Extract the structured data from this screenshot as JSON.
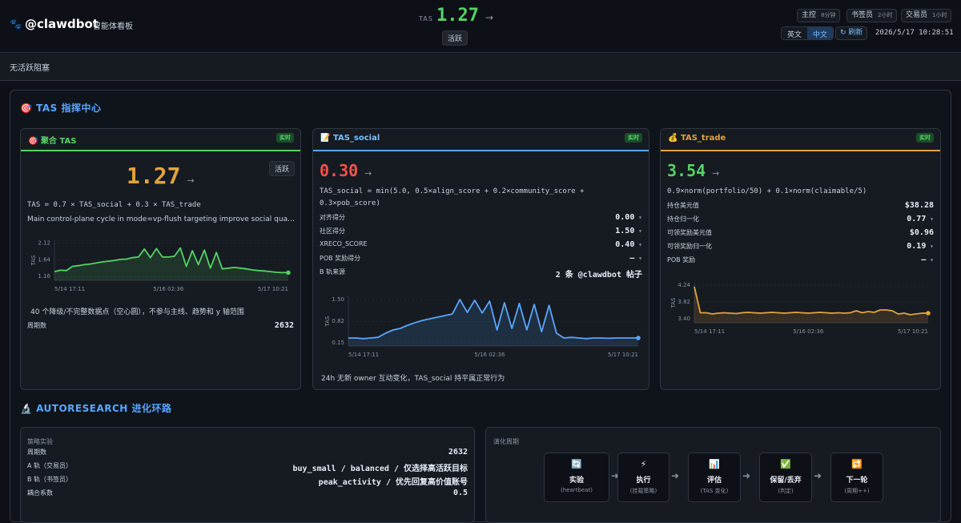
{
  "header": {
    "logo": "🐾",
    "handle": "@clawdbot",
    "subtitle": "智能体看板",
    "tas_label": "TAS",
    "tas_value": "1.27",
    "tas_trend": "→",
    "status": "活跃",
    "agents": [
      {
        "name": "主控",
        "age": "8分钟"
      },
      {
        "name": "书签员",
        "age": "2小时"
      },
      {
        "name": "交易员",
        "age": "1小时"
      }
    ],
    "languages": [
      "英文",
      "中文"
    ],
    "refresh": "↻ 刷新",
    "timestamp": "2026/5/17 10:28:51"
  },
  "blockers": "无活跃阻塞",
  "tas_section": {
    "title": "🎯 TAS 指挥中心",
    "panels": [
      {
        "icon": "🎯",
        "title": "聚合 TAS",
        "badge": "实时",
        "value": "1.27",
        "trend": "→",
        "status": "活跃",
        "formula": "TAS = 0.7 × TAS_social + 0.3 × TAS_trade",
        "description": "Main control-plane cycle in mode=vp-flush targeting improve social quality and trade balance",
        "note": "40 个降级/不完整数据点（空心圆），不参与主线、趋势和 y 轴范围",
        "rows": [
          {
            "label": "周期数",
            "value": "2632"
          }
        ],
        "chart": {
          "type": "line",
          "y_label": "TAS",
          "color": "#56d364",
          "grid": true,
          "ylim": [
            1.05,
            2.2
          ],
          "yticks": [
            2.12,
            1.64,
            1.16
          ],
          "categories": [
            "5/14 17:11",
            null,
            null,
            null,
            null,
            null,
            null,
            null,
            null,
            null,
            null,
            null,
            null,
            null,
            null,
            null,
            null,
            null,
            null,
            "5/16 02:36",
            null,
            null,
            null,
            null,
            null,
            null,
            null,
            null,
            null,
            null,
            null,
            null,
            null,
            null,
            null,
            null,
            null,
            null,
            null,
            "5/17 10:21"
          ],
          "values": [
            1.3,
            1.34,
            1.33,
            1.45,
            1.47,
            1.5,
            1.52,
            1.55,
            1.58,
            1.6,
            1.62,
            1.65,
            1.66,
            1.7,
            1.72,
            1.95,
            1.7,
            1.96,
            1.72,
            1.72,
            1.74,
            1.98,
            1.45,
            1.9,
            1.5,
            1.92,
            1.4,
            1.85,
            1.38,
            1.4,
            1.42,
            1.4,
            1.38,
            1.35,
            1.33,
            1.32,
            1.3,
            1.28,
            1.27,
            1.27
          ]
        }
      },
      {
        "icon": "📝",
        "title": "TAS_social",
        "badge": "实时",
        "value": "0.30",
        "trend": "→",
        "formula": "TAS_social = min(5.0, 0.5×align_score + 0.2×community_score + 0.3×pob_score)",
        "rows": [
          {
            "label": "对齐得分",
            "value": "0.00",
            "expandable": true
          },
          {
            "label": "社区得分",
            "value": "1.50",
            "expandable": true
          },
          {
            "label": "XRECO_SCORE",
            "value": "0.40",
            "expandable": true
          },
          {
            "label": "POB 奖励得分",
            "value": "—",
            "expandable": true
          },
          {
            "label": "B 轨来源",
            "value": "2 条 @clawdbot 帖子"
          }
        ],
        "footer": "24h 无新 owner 互动变化，TAS_social 持平属正常行为",
        "chart": {
          "type": "line",
          "y_label": "TAS",
          "color": "#58a6ff",
          "grid": true,
          "ylim": [
            0.05,
            1.6
          ],
          "yticks": [
            {
              "value": 1.5,
              "label": "1.50"
            },
            0.82,
            0.15
          ],
          "categories": [
            "5/14 17:11",
            null,
            null,
            null,
            null,
            null,
            null,
            null,
            null,
            null,
            null,
            null,
            null,
            null,
            null,
            null,
            null,
            null,
            null,
            "5/16 02:36",
            null,
            null,
            null,
            null,
            null,
            null,
            null,
            null,
            null,
            null,
            null,
            null,
            null,
            null,
            null,
            null,
            null,
            null,
            null,
            "5/17 10:21"
          ],
          "values": [
            0.3,
            0.3,
            0.28,
            0.3,
            0.32,
            0.45,
            0.55,
            0.6,
            0.7,
            0.78,
            0.85,
            0.9,
            0.95,
            1.0,
            1.05,
            1.5,
            1.1,
            1.48,
            1.08,
            1.45,
            0.55,
            1.4,
            0.6,
            1.38,
            0.55,
            1.35,
            0.5,
            1.32,
            0.45,
            0.3,
            0.32,
            0.3,
            0.28,
            0.3,
            0.3,
            0.29,
            0.3,
            0.3,
            0.3,
            0.3
          ]
        }
      },
      {
        "icon": "💰",
        "title": "TAS_trade",
        "badge": "实时",
        "value": "3.54",
        "trend": "→",
        "formula": "0.9×norm(portfolio/50) + 0.1×norm(claimable/5)",
        "rows": [
          {
            "label": "持仓美元值",
            "value": "$38.28"
          },
          {
            "label": "持仓归一化",
            "value": "0.77",
            "expandable": true
          },
          {
            "label": "可领奖励美元值",
            "value": "$0.96"
          },
          {
            "label": "可领奖励归一化",
            "value": "0.19",
            "expandable": true
          },
          {
            "label": "POB 奖励",
            "value": "—",
            "expandable": true
          }
        ],
        "chart": {
          "type": "line",
          "y_label": "TAS",
          "color": "#e3a33b",
          "grid": true,
          "ylim": [
            3.3,
            4.3
          ],
          "yticks": [
            4.24,
            3.82,
            {
              "value": 3.4,
              "label": "3.40"
            }
          ],
          "categories": [
            "5/14 17:11",
            null,
            null,
            null,
            null,
            null,
            null,
            null,
            null,
            null,
            null,
            null,
            null,
            null,
            null,
            null,
            null,
            null,
            null,
            "5/16 02:36",
            null,
            null,
            null,
            null,
            null,
            null,
            null,
            null,
            null,
            null,
            null,
            null,
            null,
            null,
            null,
            null,
            null,
            null,
            null,
            "5/17 10:21"
          ],
          "values": [
            4.2,
            3.55,
            3.55,
            3.52,
            3.54,
            3.55,
            3.54,
            3.53,
            3.55,
            3.56,
            3.55,
            3.54,
            3.55,
            3.56,
            3.55,
            3.54,
            3.55,
            3.56,
            3.55,
            3.54,
            3.55,
            3.56,
            3.55,
            3.54,
            3.55,
            3.54,
            3.55,
            3.6,
            3.55,
            3.58,
            3.56,
            3.62,
            3.62,
            3.6,
            3.52,
            3.54,
            3.5,
            3.52,
            3.54,
            3.54
          ]
        }
      }
    ]
  },
  "autoresearch": {
    "title": "🔬 AUTORESEARCH 进化环路",
    "experiments": {
      "title": "策略实验",
      "rows": [
        {
          "label": "周期数",
          "value": "2632"
        },
        {
          "label": "A 轨（交易员）",
          "value": "buy_small / balanced / 仅选择高活跃目标"
        },
        {
          "label": "B 轨（书签员）",
          "value": "peak_activity / 优先回复高价值账号"
        },
        {
          "label": "耦合系数",
          "value": "0.5"
        }
      ]
    },
    "cycle": {
      "title": "演化周期",
      "steps": [
        {
          "icon": "🔄",
          "title": "实验",
          "sub": "(heartbeat)"
        },
        {
          "icon": "⚡",
          "title": "执行",
          "sub": "(挂载策略)"
        },
        {
          "icon": "📊",
          "title": "评估",
          "sub": "(TAS 变化)"
        },
        {
          "icon": "✅",
          "title": "保留/丢弃",
          "sub": "(判定)"
        },
        {
          "icon": "🔁",
          "title": "下一轮",
          "sub": "(周期++)"
        }
      ]
    }
  }
}
